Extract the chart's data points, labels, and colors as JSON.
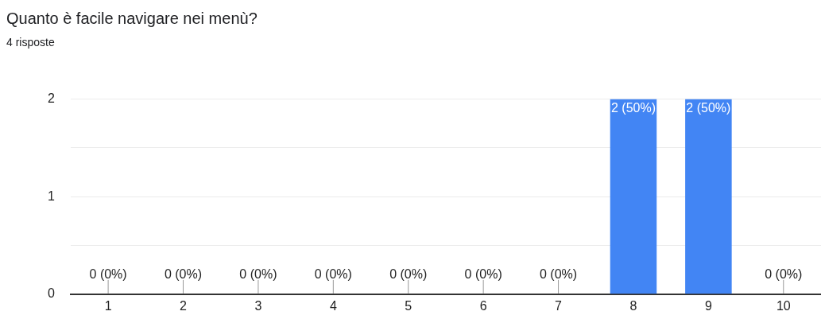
{
  "chart_data": {
    "type": "bar",
    "title": "Quanto è facile navigare nei menù?",
    "subtitle": "4 risposte",
    "categories": [
      "1",
      "2",
      "3",
      "4",
      "5",
      "6",
      "7",
      "8",
      "9",
      "10"
    ],
    "values": [
      0,
      0,
      0,
      0,
      0,
      0,
      0,
      2,
      2,
      0
    ],
    "value_labels": [
      "0 (0%)",
      "0 (0%)",
      "0 (0%)",
      "0 (0%)",
      "0 (0%)",
      "0 (0%)",
      "0 (0%)",
      "2 (50%)",
      "2 (50%)",
      "0 (0%)"
    ],
    "color": "#4285f4",
    "ylim": [
      0,
      2
    ],
    "yticks": [
      0,
      {
        "value": 0.5,
        "label": null
      },
      1,
      {
        "value": 1.5,
        "label": null
      },
      2
    ],
    "grid": "y",
    "legend": false
  }
}
